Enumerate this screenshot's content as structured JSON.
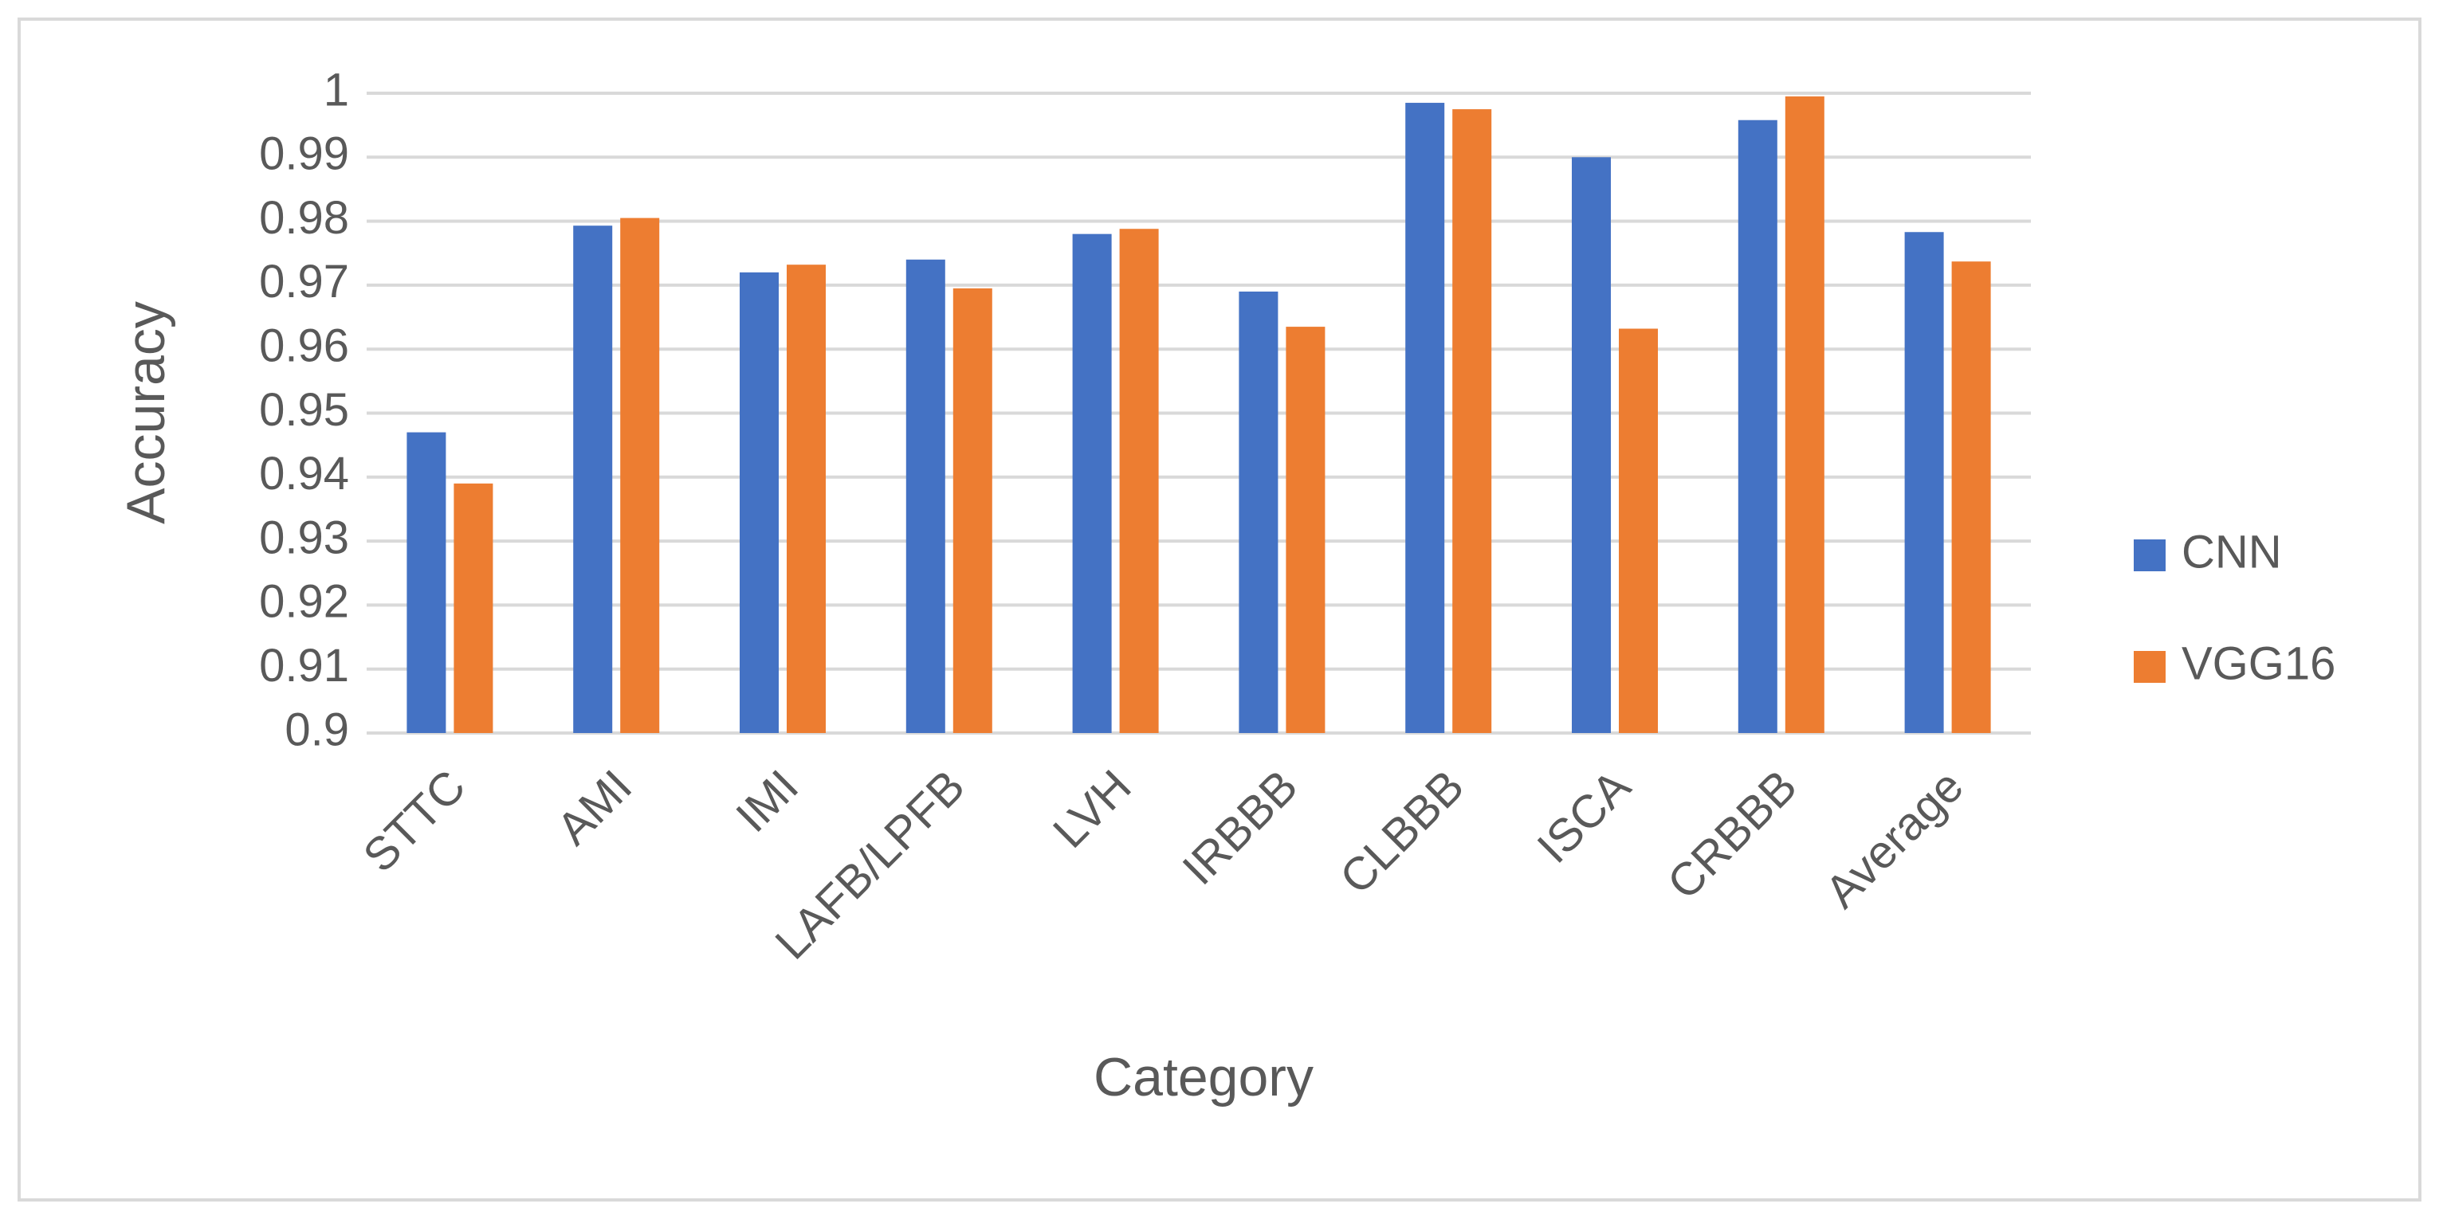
{
  "chart_data": {
    "type": "bar",
    "x_label": "Category",
    "y_label": "Accuracy",
    "categories": [
      "STTC",
      "AMI",
      "IMI",
      "LAFB/LPFB",
      "LVH",
      "IRBBB",
      "CLBBB",
      "ISCA",
      "CRBBB",
      "Average"
    ],
    "series": [
      {
        "name": "CNN",
        "color": "#4472c4",
        "values": [
          0.947,
          0.9793,
          0.972,
          0.974,
          0.978,
          0.969,
          0.9985,
          0.99,
          0.9958,
          0.9783
        ]
      },
      {
        "name": "VGG16",
        "color": "#ed7d31",
        "values": [
          0.939,
          0.9805,
          0.9732,
          0.9695,
          0.9788,
          0.9635,
          0.9975,
          0.9632,
          0.9995,
          0.9737
        ]
      }
    ],
    "ylim": [
      0.9,
      1
    ],
    "yticks": [
      0.9,
      0.91,
      0.92,
      0.93,
      0.94,
      0.95,
      0.96,
      0.97,
      0.98,
      0.99,
      1
    ],
    "grid": true,
    "legend": "right"
  }
}
